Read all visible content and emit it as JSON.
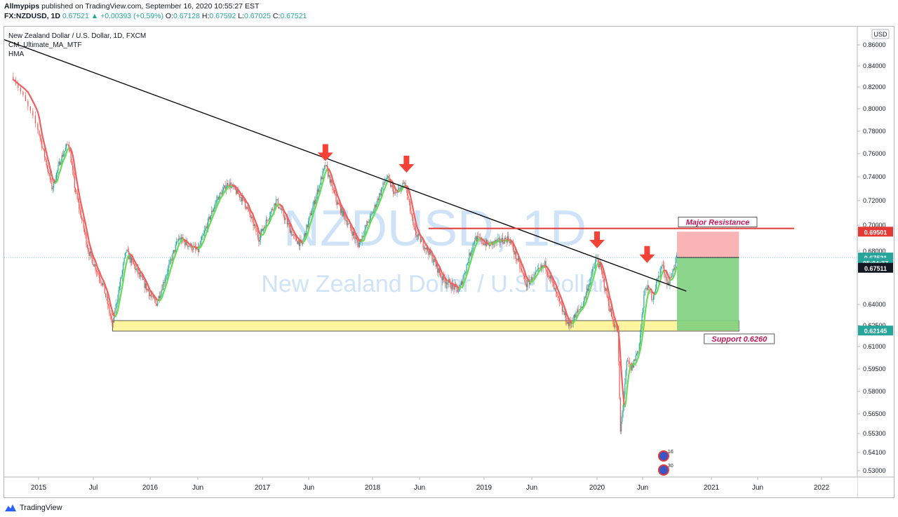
{
  "header": {
    "author": "Allmypips",
    "published": "published on TradingView.com, September 16, 2020 10:55:27 EST",
    "symbol": "FX:NZDUSD, 1D",
    "last": "0.67521",
    "change": "+0.00393 (+0.59%)",
    "open_label": "O:",
    "open": "0.67128",
    "high_label": "H:",
    "high": "0.67592",
    "low_label": "L:",
    "low": "0.67025",
    "close_label": "C:",
    "close": "0.67521"
  },
  "legend": {
    "title": "New Zealand Dollar / U.S. Dollar, 1D, FXCM",
    "indicator1": "CM_Ultimate_MA_MTF",
    "indicator2": "HMA"
  },
  "watermark": {
    "line1": "NZDUSD, 1D",
    "line2": "New Zealand Dollar / U.S. Dollar"
  },
  "footer": {
    "brand": "TradingView"
  },
  "colors": {
    "up": "#26a69a",
    "down": "#ef5350",
    "ma": "#f06060",
    "ma_up": "#66dd55",
    "trend": "#000000",
    "support_fill": "#fff5a0",
    "resistance": "#e53935",
    "target_fill": "#7fd07f",
    "stop_fill": "#f8a8a8",
    "arrow": "#f44336",
    "annot": "#c2185b"
  },
  "chart_data": {
    "type": "candlestick",
    "currency": "USD",
    "y_ticks": [
      "0.86000",
      "0.84000",
      "0.82000",
      "0.80000",
      "0.78000",
      "0.76000",
      "0.74000",
      "0.72000",
      "0.70000",
      "0.68000",
      "0.64000",
      "0.62500",
      "0.61000",
      "0.59500",
      "0.58000",
      "0.56500",
      "0.55300",
      "0.54100",
      "0.53000"
    ],
    "x_ticks": [
      "2015",
      "Jul",
      "2016",
      "Jun",
      "2017",
      "Jun",
      "2018",
      "Jun",
      "2019",
      "Jun",
      "2020",
      "Jun",
      "2021",
      "Jun",
      "2022"
    ],
    "price_anchors": [
      [
        "2014-12-01",
        0.83
      ],
      [
        "2015-01-01",
        0.78
      ],
      [
        "2015-02-15",
        0.73
      ],
      [
        "2015-03-15",
        0.755
      ],
      [
        "2015-04-10",
        0.77
      ],
      [
        "2015-05-01",
        0.73
      ],
      [
        "2015-06-15",
        0.68
      ],
      [
        "2015-08-01",
        0.655
      ],
      [
        "2015-09-01",
        0.625
      ],
      [
        "2015-10-15",
        0.68
      ],
      [
        "2015-12-01",
        0.66
      ],
      [
        "2016-01-20",
        0.64
      ],
      [
        "2016-04-01",
        0.69
      ],
      [
        "2016-06-01",
        0.68
      ],
      [
        "2016-08-01",
        0.72
      ],
      [
        "2016-09-10",
        0.735
      ],
      [
        "2016-11-01",
        0.72
      ],
      [
        "2016-12-20",
        0.69
      ],
      [
        "2017-02-15",
        0.72
      ],
      [
        "2017-04-15",
        0.69
      ],
      [
        "2017-05-10",
        0.685
      ],
      [
        "2017-07-27",
        0.75
      ],
      [
        "2017-09-01",
        0.72
      ],
      [
        "2017-11-15",
        0.685
      ],
      [
        "2018-01-01",
        0.71
      ],
      [
        "2018-02-15",
        0.74
      ],
      [
        "2018-03-15",
        0.725
      ],
      [
        "2018-04-15",
        0.735
      ],
      [
        "2018-05-15",
        0.695
      ],
      [
        "2018-07-01",
        0.68
      ],
      [
        "2018-08-15",
        0.66
      ],
      [
        "2018-10-10",
        0.65
      ],
      [
        "2018-12-01",
        0.69
      ],
      [
        "2019-01-15",
        0.685
      ],
      [
        "2019-03-20",
        0.69
      ],
      [
        "2019-05-15",
        0.655
      ],
      [
        "2019-07-15",
        0.67
      ],
      [
        "2019-09-01",
        0.64
      ],
      [
        "2019-10-01",
        0.625
      ],
      [
        "2019-11-15",
        0.64
      ],
      [
        "2019-12-31",
        0.675
      ],
      [
        "2020-01-15",
        0.665
      ],
      [
        "2020-02-20",
        0.63
      ],
      [
        "2020-03-10",
        0.62
      ],
      [
        "2020-03-19",
        0.553
      ],
      [
        "2020-04-10",
        0.6
      ],
      [
        "2020-04-25",
        0.595
      ],
      [
        "2020-05-20",
        0.61
      ],
      [
        "2020-06-10",
        0.655
      ],
      [
        "2020-07-01",
        0.645
      ],
      [
        "2020-07-31",
        0.67
      ],
      [
        "2020-08-20",
        0.655
      ],
      [
        "2020-09-16",
        0.6752
      ]
    ],
    "trendline": [
      [
        "2014-11-20",
        0.865
      ],
      [
        "2020-10-15",
        0.65
      ]
    ],
    "support_zone": {
      "label": "Support 0.6260",
      "from": "2015-09-01",
      "to": "2021-04-01",
      "high": 0.6285,
      "low": 0.621
    },
    "major_resistance": {
      "label": "Major Resistance",
      "from": "2018-07-01",
      "to": "2021-10-01",
      "price": 0.6975
    },
    "position": {
      "entry": 0.6752,
      "stop": 0.695,
      "target": 0.62145,
      "from": "2020-09-16",
      "to": "2021-04-01"
    },
    "arrows": [
      [
        "2017-07-27",
        0.75
      ],
      [
        "2018-04-20",
        0.74
      ],
      [
        "2020-01-01",
        0.679
      ],
      [
        "2020-06-15",
        0.668
      ]
    ],
    "price_labels": [
      {
        "text": "0.69501",
        "price": 0.695,
        "bg": "#e53935"
      },
      {
        "text": "0.67521",
        "price": 0.6752,
        "bg": "#26a69a"
      },
      {
        "text": "05:04:37",
        "price": 0.6712,
        "bg": "#26a69a"
      },
      {
        "text": "0.67511",
        "price": 0.6675,
        "bg": "#131722"
      },
      {
        "text": "0.62145",
        "price": 0.6214,
        "bg": "#26a69a"
      }
    ],
    "event_markers": [
      "16",
      "30"
    ]
  }
}
